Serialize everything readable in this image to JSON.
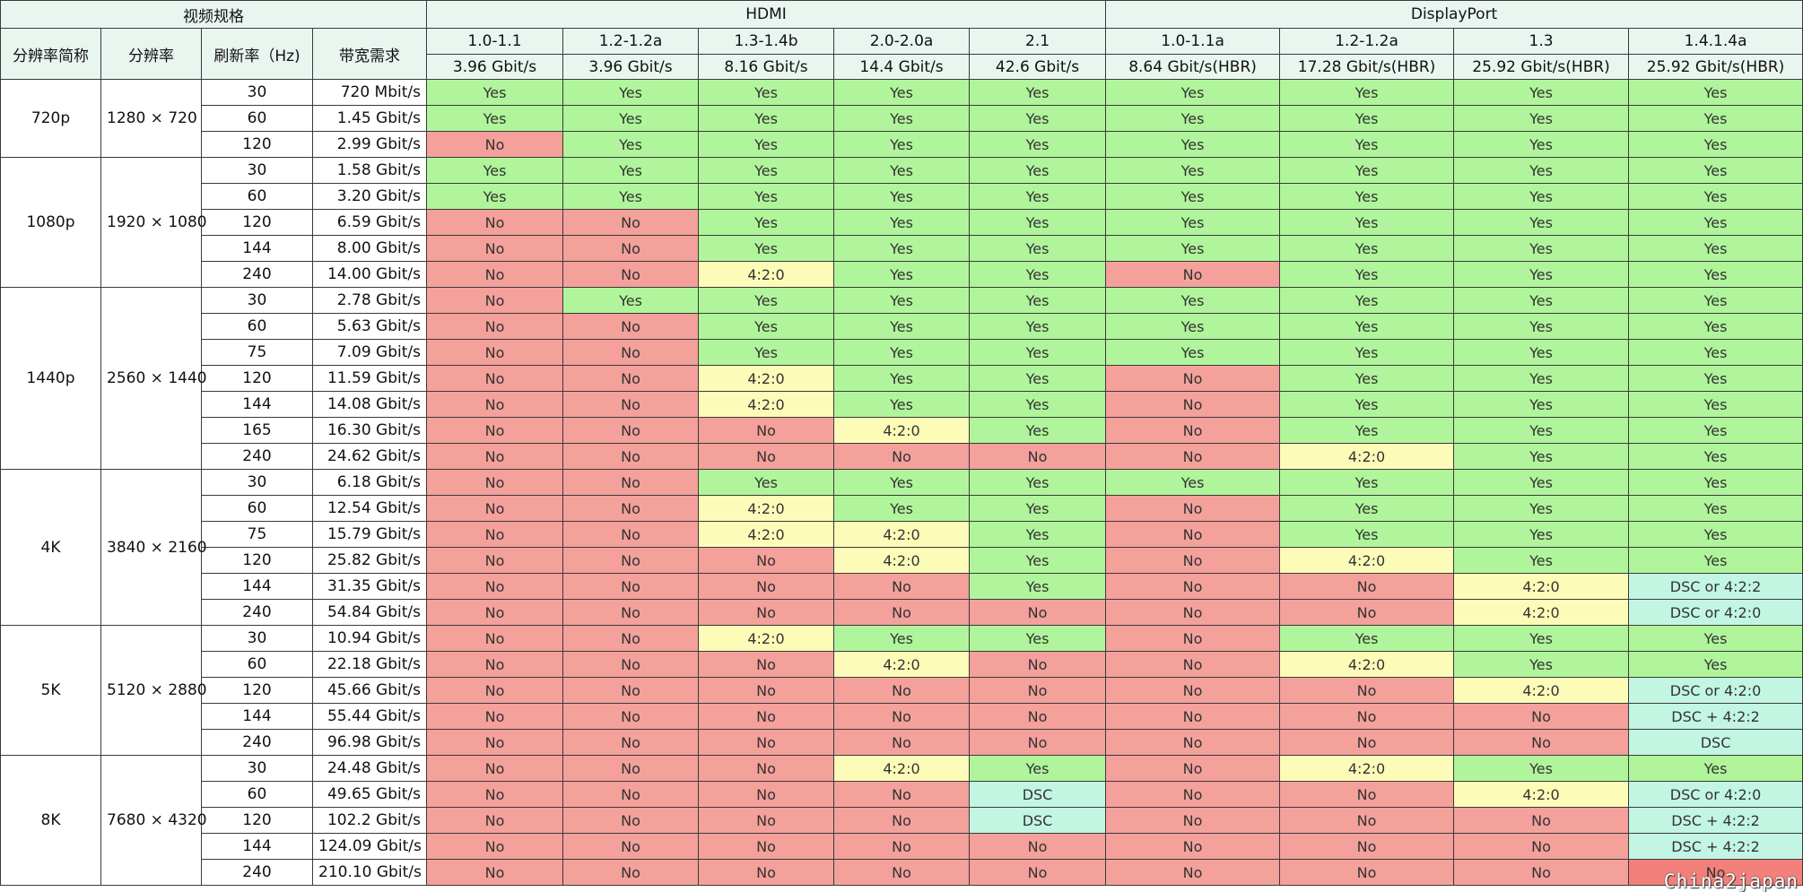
{
  "header": {
    "video_spec": "视频规格",
    "hdmi": "HDMI",
    "displayport": "DisplayPort",
    "col_res_name": "分辨率简称",
    "col_res": "分辨率",
    "col_refresh": "刷新率（Hz)",
    "col_bw": "带宽需求",
    "versions": [
      {
        "ver": "1.0-1.1",
        "bw": "3.96 Gbit/s"
      },
      {
        "ver": "1.2-1.2a",
        "bw": "3.96 Gbit/s"
      },
      {
        "ver": "1.3-1.4b",
        "bw": "8.16 Gbit/s"
      },
      {
        "ver": "2.0-2.0a",
        "bw": "14.4 Gbit/s"
      },
      {
        "ver": "2.1",
        "bw": "42.6 Gbit/s"
      },
      {
        "ver": "1.0-1.1a",
        "bw": "8.64 Gbit/s(HBR)"
      },
      {
        "ver": "1.2-1.2a",
        "bw": "17.28 Gbit/s(HBR)"
      },
      {
        "ver": "1.3",
        "bw": "25.92 Gbit/s(HBR)"
      },
      {
        "ver": "1.4.1.4a",
        "bw": "25.92 Gbit/s(HBR)"
      }
    ]
  },
  "status_colors": {
    "Yes": "#b0f59b",
    "No": "#f4a09b",
    "4:2:0": "#fdfbb8",
    "DSC": "#c2f6e3"
  },
  "groups": [
    {
      "name": "720p",
      "res": "1280 × 720",
      "rows": [
        {
          "hz": "30",
          "bw": "720 Mbit/s",
          "cells": [
            "Yes",
            "Yes",
            "Yes",
            "Yes",
            "Yes",
            "Yes",
            "Yes",
            "Yes",
            "Yes"
          ]
        },
        {
          "hz": "60",
          "bw": "1.45 Gbit/s",
          "cells": [
            "Yes",
            "Yes",
            "Yes",
            "Yes",
            "Yes",
            "Yes",
            "Yes",
            "Yes",
            "Yes"
          ]
        },
        {
          "hz": "120",
          "bw": "2.99 Gbit/s",
          "cells": [
            "No",
            "Yes",
            "Yes",
            "Yes",
            "Yes",
            "Yes",
            "Yes",
            "Yes",
            "Yes"
          ]
        }
      ]
    },
    {
      "name": "1080p",
      "res": "1920 × 1080",
      "rows": [
        {
          "hz": "30",
          "bw": "1.58 Gbit/s",
          "cells": [
            "Yes",
            "Yes",
            "Yes",
            "Yes",
            "Yes",
            "Yes",
            "Yes",
            "Yes",
            "Yes"
          ]
        },
        {
          "hz": "60",
          "bw": "3.20 Gbit/s",
          "cells": [
            "Yes",
            "Yes",
            "Yes",
            "Yes",
            "Yes",
            "Yes",
            "Yes",
            "Yes",
            "Yes"
          ]
        },
        {
          "hz": "120",
          "bw": "6.59 Gbit/s",
          "cells": [
            "No",
            "No",
            "Yes",
            "Yes",
            "Yes",
            "Yes",
            "Yes",
            "Yes",
            "Yes"
          ]
        },
        {
          "hz": "144",
          "bw": "8.00 Gbit/s",
          "cells": [
            "No",
            "No",
            "Yes",
            "Yes",
            "Yes",
            "Yes",
            "Yes",
            "Yes",
            "Yes"
          ]
        },
        {
          "hz": "240",
          "bw": "14.00 Gbit/s",
          "cells": [
            "No",
            "No",
            "4:2:0",
            "Yes",
            "Yes",
            "No",
            "Yes",
            "Yes",
            "Yes"
          ]
        }
      ]
    },
    {
      "name": "1440p",
      "res": "2560 × 1440",
      "rows": [
        {
          "hz": "30",
          "bw": "2.78 Gbit/s",
          "cells": [
            "No",
            "Yes",
            "Yes",
            "Yes",
            "Yes",
            "Yes",
            "Yes",
            "Yes",
            "Yes"
          ]
        },
        {
          "hz": "60",
          "bw": "5.63 Gbit/s",
          "cells": [
            "No",
            "No",
            "Yes",
            "Yes",
            "Yes",
            "Yes",
            "Yes",
            "Yes",
            "Yes"
          ]
        },
        {
          "hz": "75",
          "bw": "7.09 Gbit/s",
          "cells": [
            "No",
            "No",
            "Yes",
            "Yes",
            "Yes",
            "Yes",
            "Yes",
            "Yes",
            "Yes"
          ]
        },
        {
          "hz": "120",
          "bw": "11.59 Gbit/s",
          "cells": [
            "No",
            "No",
            "4:2:0",
            "Yes",
            "Yes",
            "No",
            "Yes",
            "Yes",
            "Yes"
          ]
        },
        {
          "hz": "144",
          "bw": "14.08 Gbit/s",
          "cells": [
            "No",
            "No",
            "4:2:0",
            "Yes",
            "Yes",
            "No",
            "Yes",
            "Yes",
            "Yes"
          ]
        },
        {
          "hz": "165",
          "bw": "16.30 Gbit/s",
          "cells": [
            "No",
            "No",
            "No",
            "4:2:0",
            "Yes",
            "No",
            "Yes",
            "Yes",
            "Yes"
          ]
        },
        {
          "hz": "240",
          "bw": "24.62 Gbit/s",
          "cells": [
            "No",
            "No",
            "No",
            "No",
            "No",
            "No",
            "4:2:0",
            "Yes",
            "Yes"
          ]
        }
      ]
    },
    {
      "name": "4K",
      "res": "3840 × 2160",
      "rows": [
        {
          "hz": "30",
          "bw": "6.18 Gbit/s",
          "cells": [
            "No",
            "No",
            "Yes",
            "Yes",
            "Yes",
            "Yes",
            "Yes",
            "Yes",
            "Yes"
          ]
        },
        {
          "hz": "60",
          "bw": "12.54 Gbit/s",
          "cells": [
            "No",
            "No",
            "4:2:0",
            "Yes",
            "Yes",
            "No",
            "Yes",
            "Yes",
            "Yes"
          ]
        },
        {
          "hz": "75",
          "bw": "15.79 Gbit/s",
          "cells": [
            "No",
            "No",
            "4:2:0",
            "4:2:0",
            "Yes",
            "No",
            "Yes",
            "Yes",
            "Yes"
          ]
        },
        {
          "hz": "120",
          "bw": "25.82 Gbit/s",
          "cells": [
            "No",
            "No",
            "No",
            "4:2:0",
            "Yes",
            "No",
            "4:2:0",
            "Yes",
            "Yes"
          ]
        },
        {
          "hz": "144",
          "bw": "31.35 Gbit/s",
          "cells": [
            "No",
            "No",
            "No",
            "No",
            "Yes",
            "No",
            "No",
            "4:2:0",
            "DSC or 4:2:2"
          ]
        },
        {
          "hz": "240",
          "bw": "54.84 Gbit/s",
          "cells": [
            "No",
            "No",
            "No",
            "No",
            "No",
            "No",
            "No",
            "4:2:0",
            "DSC or 4:2:0"
          ]
        }
      ]
    },
    {
      "name": "5K",
      "res": "5120 × 2880",
      "rows": [
        {
          "hz": "30",
          "bw": "10.94 Gbit/s",
          "cells": [
            "No",
            "No",
            "4:2:0",
            "Yes",
            "Yes",
            "No",
            "Yes",
            "Yes",
            "Yes"
          ]
        },
        {
          "hz": "60",
          "bw": "22.18 Gbit/s",
          "cells": [
            "No",
            "No",
            "No",
            "4:2:0",
            "No",
            "No",
            "4:2:0",
            "Yes",
            "Yes"
          ]
        },
        {
          "hz": "120",
          "bw": "45.66 Gbit/s",
          "cells": [
            "No",
            "No",
            "No",
            "No",
            "No",
            "No",
            "No",
            "4:2:0",
            "DSC or 4:2:0"
          ]
        },
        {
          "hz": "144",
          "bw": "55.44 Gbit/s",
          "cells": [
            "No",
            "No",
            "No",
            "No",
            "No",
            "No",
            "No",
            "No",
            "DSC + 4:2:2"
          ]
        },
        {
          "hz": "240",
          "bw": "96.98 Gbit/s",
          "cells": [
            "No",
            "No",
            "No",
            "No",
            "No",
            "No",
            "No",
            "No",
            "DSC"
          ]
        }
      ]
    },
    {
      "name": "8K",
      "res": "7680 × 4320",
      "rows": [
        {
          "hz": "30",
          "bw": "24.48 Gbit/s",
          "cells": [
            "No",
            "No",
            "No",
            "4:2:0",
            "Yes",
            "No",
            "4:2:0",
            "Yes",
            "Yes"
          ]
        },
        {
          "hz": "60",
          "bw": "49.65 Gbit/s",
          "cells": [
            "No",
            "No",
            "No",
            "No",
            "DSC",
            "No",
            "No",
            "4:2:0",
            "DSC or 4:2:0"
          ]
        },
        {
          "hz": "120",
          "bw": "102.2 Gbit/s",
          "cells": [
            "No",
            "No",
            "No",
            "No",
            "DSC",
            "No",
            "No",
            "No",
            "DSC + 4:2:2"
          ]
        },
        {
          "hz": "144",
          "bw": "124.09 Gbit/s",
          "cells": [
            "No",
            "No",
            "No",
            "No",
            "No",
            "No",
            "No",
            "No",
            "DSC + 4:2:2"
          ]
        },
        {
          "hz": "240",
          "bw": "210.10 Gbit/s",
          "cells": [
            "No",
            "No",
            "No",
            "No",
            "No",
            "No",
            "No",
            "No",
            "No"
          ]
        }
      ]
    }
  ],
  "watermark": "China2japan"
}
